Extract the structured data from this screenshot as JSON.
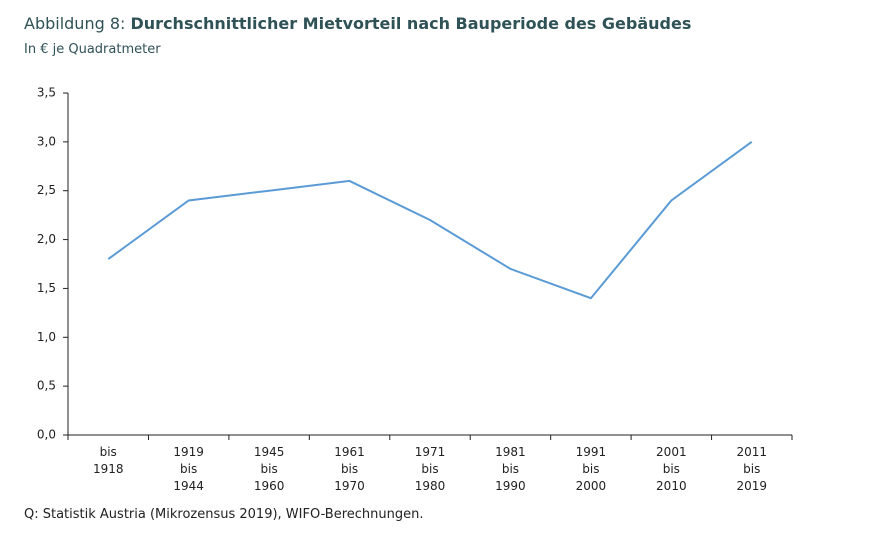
{
  "chart_data": {
    "type": "line",
    "figure_label": "Abbildung 8:",
    "title": "Durchschnittlicher Mietvorteil nach Bauperiode des Gebäudes",
    "subtitle": "In € je Quadratmeter",
    "source": "Q: Statistik Austria (Mikrozensus 2019), WIFO-Berechnungen.",
    "categories": [
      "bis\n1918",
      "1919\nbis\n1944",
      "1945\nbis\n1960",
      "1961\nbis\n1970",
      "1971\nbis\n1980",
      "1981\nbis\n1990",
      "1991\nbis\n2000",
      "2001\nbis\n2010",
      "2011\nbis\n2019"
    ],
    "values": [
      1.8,
      2.4,
      2.5,
      2.6,
      2.2,
      1.7,
      1.4,
      2.4,
      3.0
    ],
    "color": "#5b9bd5",
    "ylim": [
      0,
      3.5
    ],
    "yticks": [
      {
        "value": 0,
        "label": "0,0"
      },
      {
        "value": 0.5,
        "label": "0,5"
      },
      {
        "value": 1,
        "label": "1,0"
      },
      {
        "value": 1.5,
        "label": "1,5"
      },
      {
        "value": 2,
        "label": "2,0"
      },
      {
        "value": 2.5,
        "label": "2,5"
      },
      {
        "value": 3,
        "label": "3,0"
      },
      {
        "value": 3.5,
        "label": "3,5"
      }
    ],
    "grid": false
  }
}
